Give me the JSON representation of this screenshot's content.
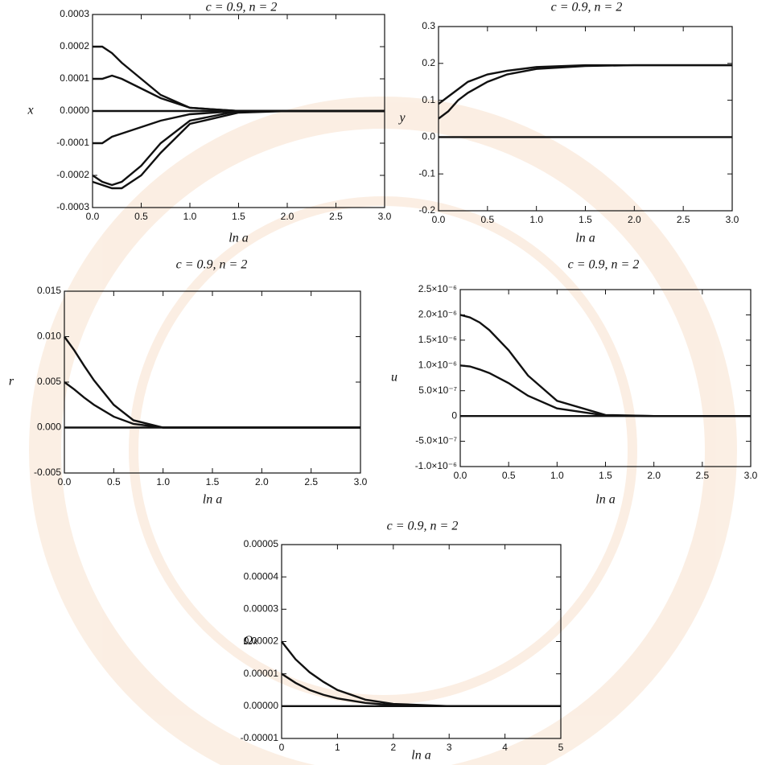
{
  "chart_data": [
    {
      "type": "line",
      "title": "c = 0.9, n = 2",
      "x_label": "ln a",
      "y_label": "x",
      "color": "#111111",
      "x": [
        0,
        0.1,
        0.2,
        0.3,
        0.5,
        0.7,
        1.0,
        1.5,
        2.0,
        3.0
      ],
      "series": [
        {
          "values": [
            0.0002,
            0.0002,
            0.00018,
            0.00015,
            0.0001,
            5e-05,
            1e-05,
            0,
            0,
            0
          ]
        },
        {
          "values": [
            0.0001,
            0.0001,
            0.00011,
            0.0001,
            7e-05,
            4e-05,
            1e-05,
            0,
            0,
            0
          ]
        },
        {
          "values": [
            0,
            0,
            0,
            0,
            0,
            0,
            0,
            0,
            0,
            0
          ]
        },
        {
          "values": [
            -0.0001,
            -0.0001,
            -8e-05,
            -7e-05,
            -5e-05,
            -3e-05,
            -1e-05,
            0,
            0,
            0
          ]
        },
        {
          "values": [
            -0.0002,
            -0.00022,
            -0.00023,
            -0.00022,
            -0.00017,
            -0.0001,
            -3e-05,
            0,
            0,
            0
          ]
        },
        {
          "values": [
            -0.00022,
            -0.00023,
            -0.00024,
            -0.00024,
            -0.0002,
            -0.00013,
            -4e-05,
            -5e-06,
            0,
            0
          ]
        }
      ],
      "xlim": [
        0,
        3
      ],
      "ylim": [
        -0.0003,
        0.0003
      ],
      "xticks": [
        {
          "value": 0,
          "label": "0.0"
        },
        0.5,
        {
          "value": 1,
          "label": "1.0"
        },
        1.5,
        {
          "value": 2,
          "label": "2.0"
        },
        2.5,
        {
          "value": 3,
          "label": "3.0"
        }
      ],
      "yticks": [
        {
          "value": -0.0003,
          "label": "-0.0003"
        },
        {
          "value": -0.0002,
          "label": "-0.0002"
        },
        {
          "value": -0.0001,
          "label": "-0.0001"
        },
        {
          "value": 0,
          "label": "0.0000"
        },
        {
          "value": 0.0001,
          "label": "0.0001"
        },
        {
          "value": 0.0002,
          "label": "0.0002"
        },
        {
          "value": 0.0003,
          "label": "0.0003"
        }
      ]
    },
    {
      "type": "line",
      "title": "c = 0.9, n = 2",
      "x_label": "ln a",
      "y_label": "y",
      "color": "#111111",
      "x": [
        0,
        0.1,
        0.2,
        0.3,
        0.5,
        0.7,
        1.0,
        1.5,
        2.0,
        3.0
      ],
      "series": [
        {
          "values": [
            0.09,
            0.11,
            0.13,
            0.15,
            0.17,
            0.18,
            0.19,
            0.195,
            0.195,
            0.195
          ]
        },
        {
          "values": [
            0.05,
            0.07,
            0.1,
            0.12,
            0.15,
            0.17,
            0.185,
            0.193,
            0.195,
            0.195
          ]
        },
        {
          "values": [
            0,
            0,
            0,
            0,
            0,
            0,
            0,
            0,
            0,
            0
          ]
        }
      ],
      "xlim": [
        0,
        3
      ],
      "ylim": [
        -0.2,
        0.3
      ],
      "xticks": [
        {
          "value": 0,
          "label": "0.0"
        },
        0.5,
        {
          "value": 1,
          "label": "1.0"
        },
        1.5,
        {
          "value": 2,
          "label": "2.0"
        },
        2.5,
        {
          "value": 3,
          "label": "3.0"
        }
      ],
      "yticks": [
        -0.2,
        -0.1,
        {
          "value": 0,
          "label": "0.0"
        },
        0.1,
        0.2,
        0.3
      ]
    },
    {
      "type": "line",
      "title": "c = 0.9, n = 2",
      "x_label": "ln a",
      "y_label": "r",
      "color": "#111111",
      "x": [
        0,
        0.1,
        0.2,
        0.3,
        0.5,
        0.7,
        1.0,
        1.5,
        2.0,
        3.0
      ],
      "series": [
        {
          "values": [
            0.01,
            0.0085,
            0.0068,
            0.0052,
            0.0025,
            0.0008,
            0,
            0,
            0,
            0
          ]
        },
        {
          "values": [
            0.005,
            0.0042,
            0.0033,
            0.0025,
            0.0012,
            0.0004,
            0,
            0,
            0,
            0
          ]
        },
        {
          "values": [
            0,
            0,
            0,
            0,
            0,
            0,
            0,
            0,
            0,
            0
          ]
        }
      ],
      "xlim": [
        0,
        3
      ],
      "ylim": [
        -0.005,
        0.015
      ],
      "xticks": [
        {
          "value": 0,
          "label": "0.0"
        },
        0.5,
        {
          "value": 1,
          "label": "1.0"
        },
        1.5,
        {
          "value": 2,
          "label": "2.0"
        },
        2.5,
        {
          "value": 3,
          "label": "3.0"
        }
      ],
      "yticks": [
        {
          "value": -0.005,
          "label": "-0.005"
        },
        {
          "value": 0,
          "label": "0.000"
        },
        {
          "value": 0.005,
          "label": "0.005"
        },
        {
          "value": 0.01,
          "label": "0.010"
        },
        {
          "value": 0.015,
          "label": "0.015"
        }
      ]
    },
    {
      "type": "line",
      "title": "c = 0.9, n = 2",
      "x_label": "ln a",
      "y_label": "u",
      "color": "#111111",
      "x": [
        0,
        0.1,
        0.2,
        0.3,
        0.5,
        0.7,
        1.0,
        1.5,
        2.0,
        3.0
      ],
      "series": [
        {
          "values": [
            2e-06,
            1.95e-06,
            1.85e-06,
            1.7e-06,
            1.3e-06,
            8e-07,
            3e-07,
            2e-08,
            0,
            0
          ]
        },
        {
          "values": [
            1e-06,
            9.8e-07,
            9.2e-07,
            8.5e-07,
            6.5e-07,
            4e-07,
            1.5e-07,
            1e-08,
            0,
            0
          ]
        },
        {
          "values": [
            0,
            0,
            0,
            0,
            0,
            0,
            0,
            0,
            0,
            0
          ]
        }
      ],
      "xlim": [
        0,
        3
      ],
      "ylim": [
        -1e-06,
        2.5e-06
      ],
      "xticks": [
        {
          "value": 0,
          "label": "0.0"
        },
        0.5,
        {
          "value": 1,
          "label": "1.0"
        },
        1.5,
        {
          "value": 2,
          "label": "2.0"
        },
        2.5,
        {
          "value": 3,
          "label": "3.0"
        }
      ],
      "yticks": [
        {
          "value": -1e-06,
          "label": "-1.0×10⁻⁶"
        },
        {
          "value": -5e-07,
          "label": "-5.0×10⁻⁷"
        },
        0,
        {
          "value": 5e-07,
          "label": "5.0×10⁻⁷"
        },
        {
          "value": 1e-06,
          "label": "1.0×10⁻⁶"
        },
        {
          "value": 1.5e-06,
          "label": "1.5×10⁻⁶"
        },
        {
          "value": 2e-06,
          "label": "2.0×10⁻⁶"
        },
        {
          "value": 2.5e-06,
          "label": "2.5×10⁻⁶"
        }
      ]
    },
    {
      "type": "line",
      "title": "c = 0.9, n = 2",
      "x_label": "ln a",
      "y_label": "Ωₖ",
      "color": "#111111",
      "x": [
        0,
        0.25,
        0.5,
        0.75,
        1,
        1.5,
        2,
        3,
        5
      ],
      "series": [
        {
          "values": [
            2e-05,
            1.45e-05,
            1.05e-05,
            7.5e-06,
            5e-06,
            2e-06,
            7e-07,
            0,
            0
          ]
        },
        {
          "values": [
            1e-05,
            7.2e-06,
            5e-06,
            3.5e-06,
            2.4e-06,
            1e-06,
            3e-07,
            0,
            0
          ]
        },
        {
          "values": [
            0,
            0,
            0,
            0,
            0,
            0,
            0,
            0,
            0
          ]
        }
      ],
      "xlim": [
        0,
        5
      ],
      "ylim": [
        -1e-05,
        5e-05
      ],
      "xticks": [
        0,
        1,
        2,
        3,
        4,
        5
      ],
      "yticks": [
        {
          "value": -1e-05,
          "label": "-0.00001"
        },
        {
          "value": 0,
          "label": "0.00000"
        },
        {
          "value": 1e-05,
          "label": "0.00001"
        },
        {
          "value": 2e-05,
          "label": "0.00002"
        },
        {
          "value": 3e-05,
          "label": "0.00003"
        },
        {
          "value": 4e-05,
          "label": "0.00004"
        },
        {
          "value": 5e-05,
          "label": "0.00005"
        }
      ]
    }
  ]
}
